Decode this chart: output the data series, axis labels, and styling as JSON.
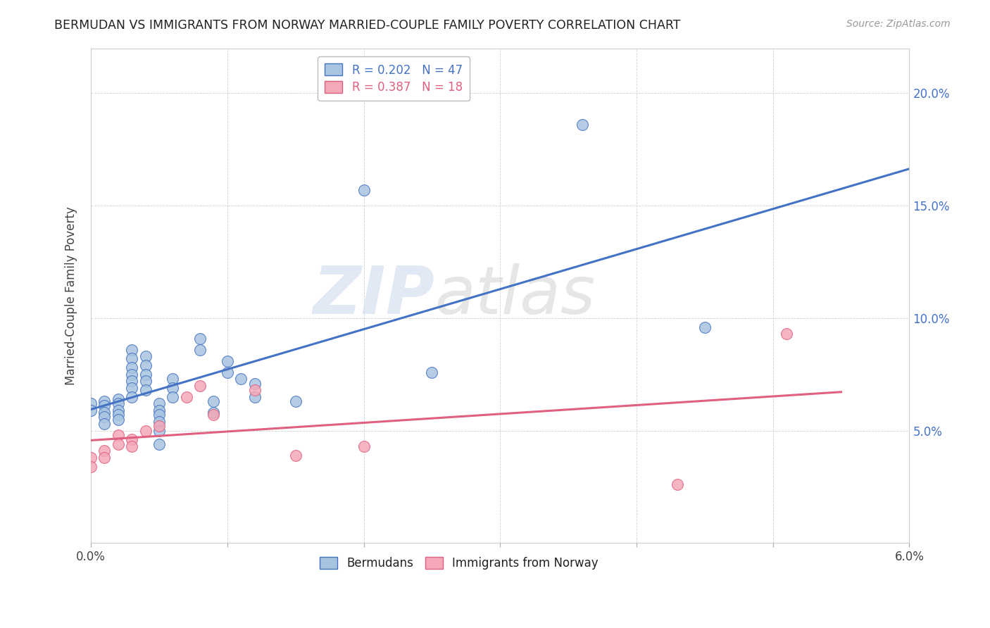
{
  "title": "BERMUDAN VS IMMIGRANTS FROM NORWAY MARRIED-COUPLE FAMILY POVERTY CORRELATION CHART",
  "source": "Source: ZipAtlas.com",
  "ylabel": "Married-Couple Family Poverty",
  "xlim": [
    0.0,
    0.06
  ],
  "ylim": [
    0.0,
    0.22
  ],
  "xtick_positions": [
    0.0,
    0.01,
    0.02,
    0.03,
    0.04,
    0.05,
    0.06
  ],
  "xtick_labels": [
    "0.0%",
    "",
    "",
    "",
    "",
    "",
    "6.0%"
  ],
  "ytick_positions": [
    0.0,
    0.05,
    0.1,
    0.15,
    0.2
  ],
  "ytick_labels": [
    "",
    "5.0%",
    "10.0%",
    "15.0%",
    "20.0%"
  ],
  "legend_line1": "R = 0.202   N = 47",
  "legend_line2": "R = 0.387   N = 18",
  "color_blue": "#a8c4e0",
  "color_pink": "#f4a8b8",
  "line_blue": "#4472c4",
  "line_pink": "#e06080",
  "watermark_zip": "ZIP",
  "watermark_atlas": "atlas",
  "bermudans_x": [
    0.0,
    0.0,
    0.001,
    0.001,
    0.001,
    0.001,
    0.001,
    0.002,
    0.002,
    0.002,
    0.002,
    0.002,
    0.003,
    0.003,
    0.003,
    0.003,
    0.003,
    0.003,
    0.003,
    0.004,
    0.004,
    0.004,
    0.004,
    0.004,
    0.005,
    0.005,
    0.005,
    0.005,
    0.005,
    0.005,
    0.006,
    0.006,
    0.006,
    0.008,
    0.008,
    0.009,
    0.009,
    0.01,
    0.01,
    0.011,
    0.012,
    0.012,
    0.015,
    0.02,
    0.025,
    0.036,
    0.045
  ],
  "bermudans_y": [
    0.062,
    0.059,
    0.063,
    0.061,
    0.058,
    0.056,
    0.053,
    0.064,
    0.062,
    0.059,
    0.057,
    0.055,
    0.086,
    0.082,
    0.078,
    0.075,
    0.072,
    0.069,
    0.065,
    0.083,
    0.079,
    0.075,
    0.072,
    0.068,
    0.062,
    0.059,
    0.057,
    0.054,
    0.05,
    0.044,
    0.073,
    0.069,
    0.065,
    0.091,
    0.086,
    0.063,
    0.058,
    0.081,
    0.076,
    0.073,
    0.071,
    0.065,
    0.063,
    0.157,
    0.076,
    0.186,
    0.096
  ],
  "norway_x": [
    0.0,
    0.0,
    0.001,
    0.001,
    0.002,
    0.002,
    0.003,
    0.003,
    0.004,
    0.005,
    0.007,
    0.008,
    0.009,
    0.012,
    0.015,
    0.02,
    0.043,
    0.051
  ],
  "norway_y": [
    0.038,
    0.034,
    0.041,
    0.038,
    0.048,
    0.044,
    0.046,
    0.043,
    0.05,
    0.052,
    0.065,
    0.07,
    0.057,
    0.068,
    0.039,
    0.043,
    0.026,
    0.093
  ]
}
